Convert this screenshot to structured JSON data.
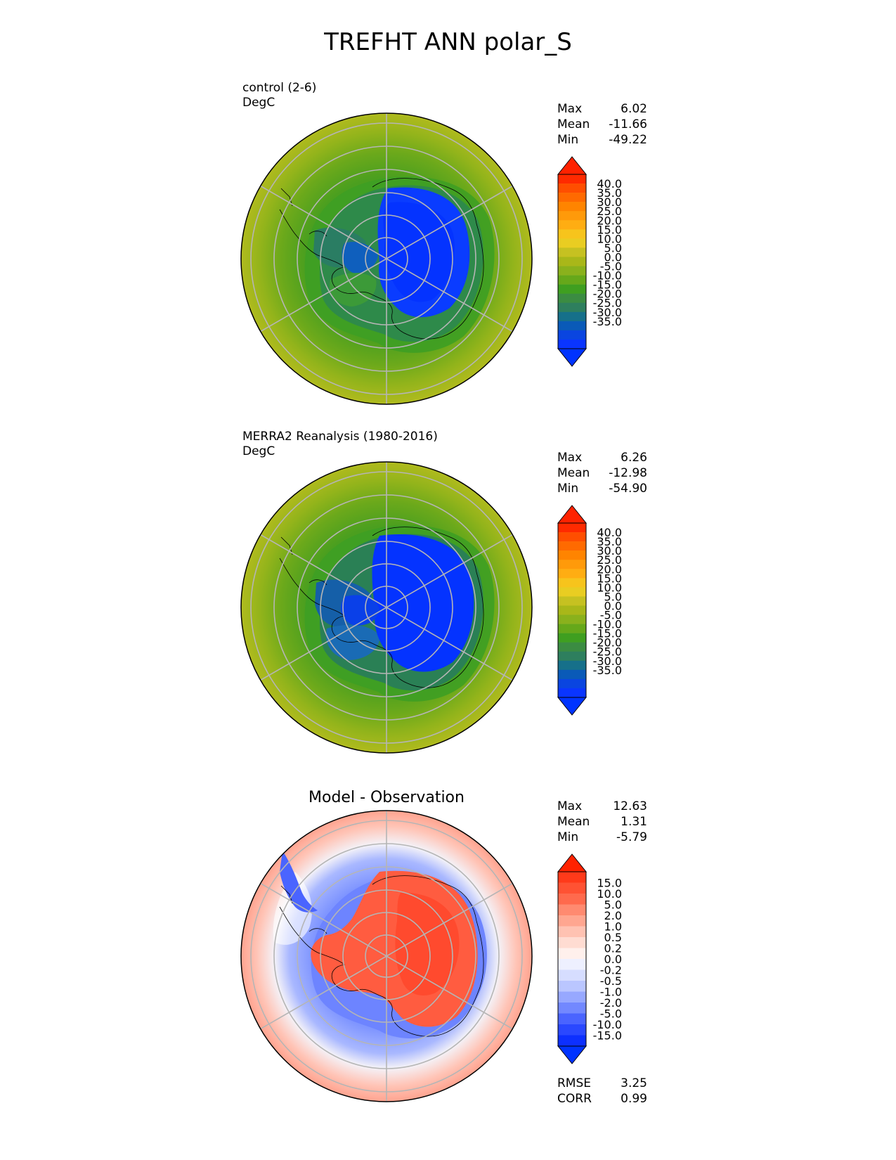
{
  "title": "TREFHT ANN polar_S",
  "panels": [
    {
      "name": "control",
      "label": "control (2-6)",
      "units": "DegC",
      "stats": {
        "max_label": "Max",
        "max": "6.02",
        "mean_label": "Mean",
        "mean": "-11.66",
        "min_label": "Min",
        "min": "-49.22"
      },
      "colorbar": {
        "ticks": [
          "40.0",
          "35.0",
          "30.0",
          "25.0",
          "20.0",
          "15.0",
          "10.0",
          "5.0",
          "0.0",
          "-5.0",
          "-10.0",
          "-15.0",
          "-20.0",
          "-25.0",
          "-30.0",
          "-35.0"
        ],
        "colors": [
          "#ff2a00",
          "#ff4e00",
          "#ff6a00",
          "#ff8400",
          "#ff9a0a",
          "#ffad12",
          "#f7c41c",
          "#e9cd22",
          "#c6c121",
          "#a9b719",
          "#8ab11c",
          "#66a81a",
          "#3f9f20",
          "#3b8c42",
          "#2e7f5e",
          "#16708a",
          "#0a5ab8",
          "#0a45e0",
          "#0a35ff"
        ],
        "over_color": "#ff2200",
        "under_color": "#0033ff"
      }
    },
    {
      "name": "merra2",
      "label": "MERRA2 Reanalysis (1980-2016)",
      "units": "DegC",
      "stats": {
        "max_label": "Max",
        "max": "6.26",
        "mean_label": "Mean",
        "mean": "-12.98",
        "min_label": "Min",
        "min": "-54.90"
      },
      "colorbar": {
        "ticks": [
          "40.0",
          "35.0",
          "30.0",
          "25.0",
          "20.0",
          "15.0",
          "10.0",
          "5.0",
          "0.0",
          "-5.0",
          "-10.0",
          "-15.0",
          "-20.0",
          "-25.0",
          "-30.0",
          "-35.0"
        ],
        "colors": [
          "#ff2a00",
          "#ff4e00",
          "#ff6a00",
          "#ff8400",
          "#ff9a0a",
          "#ffad12",
          "#f7c41c",
          "#e9cd22",
          "#c6c121",
          "#a9b719",
          "#8ab11c",
          "#66a81a",
          "#3f9f20",
          "#3b8c42",
          "#2e7f5e",
          "#16708a",
          "#0a5ab8",
          "#0a45e0",
          "#0a35ff"
        ],
        "over_color": "#ff2200",
        "under_color": "#0033ff"
      }
    },
    {
      "name": "diff",
      "title": "Model - Observation",
      "stats": {
        "max_label": "Max",
        "max": "12.63",
        "mean_label": "Mean",
        "mean": "1.31",
        "min_label": "Min",
        "min": "-5.79"
      },
      "metrics": {
        "rmse_label": "RMSE",
        "rmse": "3.25",
        "corr_label": "CORR",
        "corr": "0.99"
      },
      "colorbar": {
        "ticks": [
          "15.0",
          "10.0",
          "5.0",
          "2.0",
          "1.0",
          "0.5",
          "0.2",
          "0.0",
          "-0.2",
          "-0.5",
          "-1.0",
          "-2.0",
          "-5.0",
          "-10.0",
          "-15.0"
        ],
        "colors": [
          "#ff3a1a",
          "#ff5233",
          "#ff6a4d",
          "#ff8a70",
          "#ffa690",
          "#ffc2b2",
          "#ffdcd2",
          "#fff0ec",
          "#eef0ff",
          "#d6ddff",
          "#bac6ff",
          "#97a8ff",
          "#7288ff",
          "#4a64ff",
          "#2a48ff",
          "#0d30ff"
        ],
        "over_color": "#ff2200",
        "under_color": "#0033ff"
      }
    }
  ],
  "chart_data": [
    {
      "type": "heatmap",
      "projection": "south polar stereographic",
      "title": "control (2-6)",
      "units": "DegC",
      "max": 6.02,
      "mean": -11.66,
      "min": -49.22,
      "colorbar_levels": [
        -35,
        -30,
        -25,
        -20,
        -15,
        -10,
        -5,
        0,
        5,
        10,
        15,
        20,
        25,
        30,
        35,
        40
      ]
    },
    {
      "type": "heatmap",
      "projection": "south polar stereographic",
      "title": "MERRA2 Reanalysis (1980-2016)",
      "units": "DegC",
      "max": 6.26,
      "mean": -12.98,
      "min": -54.9,
      "colorbar_levels": [
        -35,
        -30,
        -25,
        -20,
        -15,
        -10,
        -5,
        0,
        5,
        10,
        15,
        20,
        25,
        30,
        35,
        40
      ]
    },
    {
      "type": "heatmap",
      "projection": "south polar stereographic",
      "title": "Model - Observation",
      "max": 12.63,
      "mean": 1.31,
      "min": -5.79,
      "rmse": 3.25,
      "corr": 0.99,
      "colorbar_levels": [
        -15,
        -10,
        -5,
        -2,
        -1,
        -0.5,
        -0.2,
        0,
        0.2,
        0.5,
        1,
        2,
        5,
        10,
        15
      ]
    }
  ]
}
